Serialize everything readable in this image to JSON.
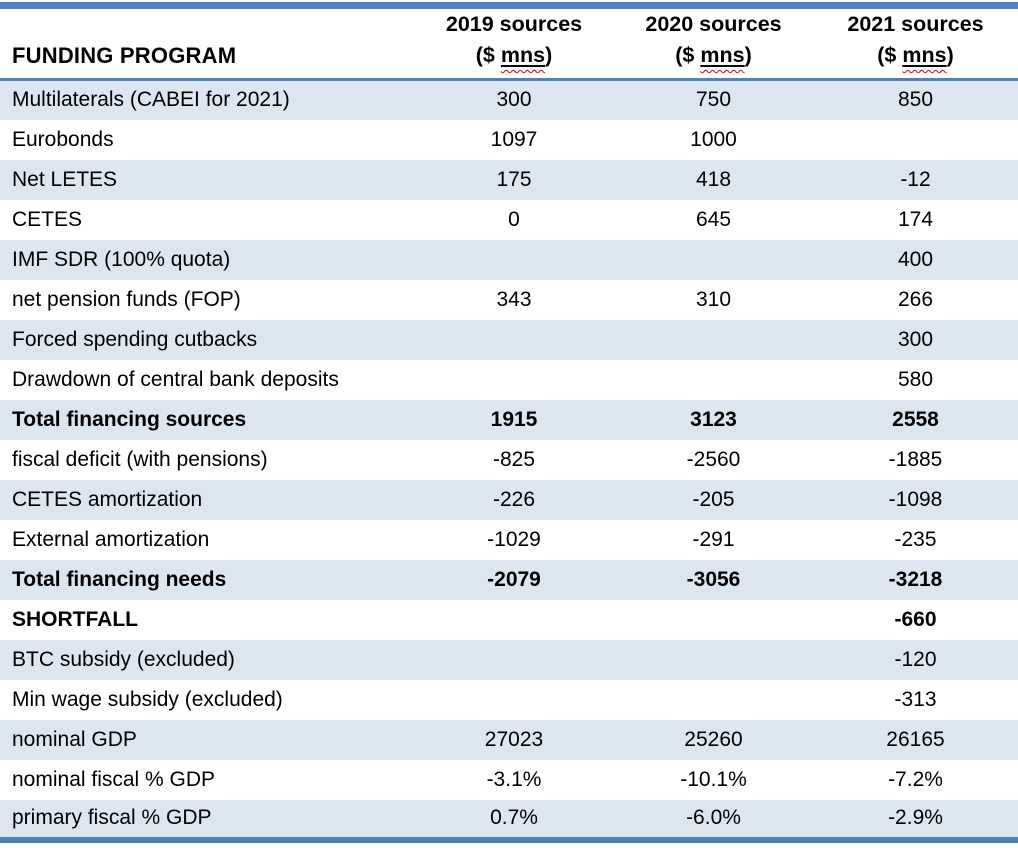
{
  "chart_data": {
    "type": "table",
    "title": "",
    "header": {
      "program_label": "FUNDING PROGRAM",
      "years": [
        "2019 sources",
        "2020 sources",
        "2021 sources"
      ],
      "unit_prefix": "($ ",
      "unit_word": "mns",
      "unit_suffix": ")"
    },
    "rows": [
      {
        "label": "Multilaterals (CABEI for 2021)",
        "values": [
          "300",
          "750",
          "850"
        ],
        "bold": false
      },
      {
        "label": "Eurobonds",
        "values": [
          "1097",
          "1000",
          ""
        ],
        "bold": false
      },
      {
        "label": "Net LETES",
        "values": [
          "175",
          "418",
          "-12"
        ],
        "bold": false
      },
      {
        "label": "CETES",
        "values": [
          "0",
          "645",
          "174"
        ],
        "bold": false
      },
      {
        "label": "IMF SDR (100% quota)",
        "values": [
          "",
          "",
          "400"
        ],
        "bold": false
      },
      {
        "label": "net pension funds (FOP)",
        "values": [
          "343",
          "310",
          "266"
        ],
        "bold": false
      },
      {
        "label": "Forced spending cutbacks",
        "values": [
          "",
          "",
          "300"
        ],
        "bold": false
      },
      {
        "label": "Drawdown of central bank deposits",
        "values": [
          "",
          "",
          "580"
        ],
        "bold": false
      },
      {
        "label": "Total financing sources",
        "values": [
          "1915",
          "3123",
          "2558"
        ],
        "bold": true
      },
      {
        "label": "fiscal deficit (with pensions)",
        "values": [
          "-825",
          "-2560",
          "-1885"
        ],
        "bold": false
      },
      {
        "label": "CETES amortization",
        "values": [
          "-226",
          "-205",
          "-1098"
        ],
        "bold": false
      },
      {
        "label": "External amortization",
        "values": [
          "-1029",
          "-291",
          "-235"
        ],
        "bold": false
      },
      {
        "label": "Total financing needs",
        "values": [
          "-2079",
          "-3056",
          "-3218"
        ],
        "bold": true
      },
      {
        "label": "SHORTFALL",
        "values": [
          "",
          "",
          "-660"
        ],
        "bold": true
      },
      {
        "label": "BTC subsidy (excluded)",
        "values": [
          "",
          "",
          "-120"
        ],
        "bold": false
      },
      {
        "label": "Min wage subsidy (excluded)",
        "values": [
          "",
          "",
          "-313"
        ],
        "bold": false
      },
      {
        "label": "nominal GDP",
        "values": [
          "27023",
          "25260",
          "26165"
        ],
        "bold": false
      },
      {
        "label": "nominal fiscal % GDP",
        "values": [
          "-3.1%",
          "-10.1%",
          "-7.2%"
        ],
        "bold": false
      },
      {
        "label": "primary fiscal % GDP",
        "values": [
          "0.7%",
          "-6.0%",
          "-2.9%"
        ],
        "bold": false
      }
    ],
    "layout": {
      "shaded_rows": "odd rows starting with first",
      "alignment": {
        "labels": "left",
        "values": "center"
      }
    }
  },
  "colors": {
    "accent_border": "#4f81bd",
    "row_shade": "#dce6f1",
    "spellcheck_squiggle": "#e00000",
    "text": "#000000"
  }
}
